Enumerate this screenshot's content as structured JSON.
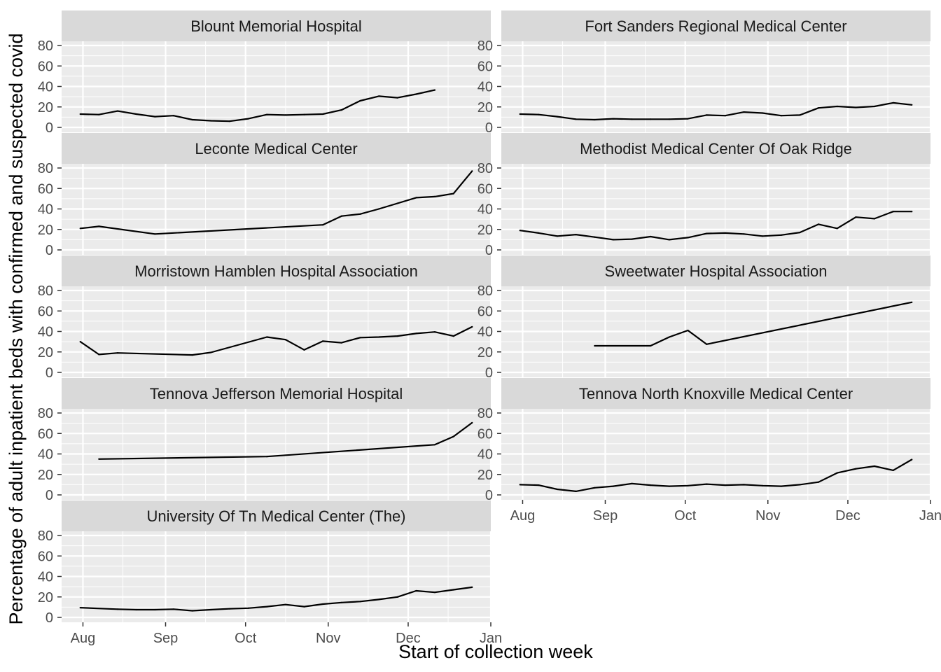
{
  "chart_data": {
    "type": "line",
    "layout": "facet-grid",
    "xlabel": "Start of collection week",
    "ylabel": "Percentage of adult inpatient beds with confirmed and suspected covid",
    "x_ticks": [
      "Aug",
      "Sep",
      "Oct",
      "Nov",
      "Dec",
      "Jan"
    ],
    "x_tick_dates": [
      "2020-08-01",
      "2020-09-01",
      "2020-10-01",
      "2020-11-01",
      "2020-12-01",
      "2021-01-01"
    ],
    "y_ticks": [
      0,
      20,
      40,
      60,
      80
    ],
    "xlim": [
      "2020-07-24",
      "2021-01-01"
    ],
    "ylim": [
      0,
      80
    ],
    "grid": true,
    "colors": {
      "panel": "#ebebeb",
      "strip": "#d9d9d9",
      "grid": "#ffffff",
      "line": "#000000"
    },
    "facets": [
      {
        "name": "Blount Memorial Hospital",
        "points": [
          [
            "2020-07-31",
            13
          ],
          [
            "2020-08-07",
            12.5
          ],
          [
            "2020-08-14",
            16
          ],
          [
            "2020-08-21",
            13
          ],
          [
            "2020-08-28",
            10.5
          ],
          [
            "2020-09-04",
            11.5
          ],
          [
            "2020-09-11",
            7.5
          ],
          [
            "2020-09-18",
            6.5
          ],
          [
            "2020-09-25",
            6
          ],
          [
            "2020-10-02",
            8.5
          ],
          [
            "2020-10-09",
            12.5
          ],
          [
            "2020-10-16",
            12
          ],
          [
            "2020-10-23",
            12.5
          ],
          [
            "2020-10-30",
            13
          ],
          [
            "2020-11-06",
            17
          ],
          [
            "2020-11-13",
            26
          ],
          [
            "2020-11-20",
            30.5
          ],
          [
            "2020-11-27",
            29
          ],
          [
            "2020-12-04",
            32.5
          ],
          [
            "2020-12-11",
            36.5
          ]
        ]
      },
      {
        "name": "Fort Sanders Regional Medical Center",
        "points": [
          [
            "2020-07-31",
            13
          ],
          [
            "2020-08-07",
            12.5
          ],
          [
            "2020-08-14",
            10.5
          ],
          [
            "2020-08-21",
            8
          ],
          [
            "2020-08-28",
            7.5
          ],
          [
            "2020-09-04",
            8.5
          ],
          [
            "2020-09-11",
            8
          ],
          [
            "2020-09-18",
            8
          ],
          [
            "2020-09-25",
            8
          ],
          [
            "2020-10-02",
            8.5
          ],
          [
            "2020-10-09",
            12
          ],
          [
            "2020-10-16",
            11.5
          ],
          [
            "2020-10-23",
            15
          ],
          [
            "2020-10-30",
            14
          ],
          [
            "2020-11-06",
            11.5
          ],
          [
            "2020-11-13",
            12
          ],
          [
            "2020-11-20",
            19
          ],
          [
            "2020-11-27",
            20.5
          ],
          [
            "2020-12-04",
            19.5
          ],
          [
            "2020-12-11",
            20.5
          ],
          [
            "2020-12-18",
            24
          ],
          [
            "2020-12-25",
            22
          ]
        ]
      },
      {
        "name": "Leconte Medical Center",
        "points": [
          [
            "2020-07-31",
            21
          ],
          [
            "2020-08-07",
            23
          ],
          [
            "2020-08-28",
            15.5
          ],
          [
            "2020-10-30",
            24.5
          ],
          [
            "2020-11-06",
            33
          ],
          [
            "2020-11-13",
            35
          ],
          [
            "2020-11-20",
            40
          ],
          [
            "2020-11-27",
            45.5
          ],
          [
            "2020-12-04",
            51
          ],
          [
            "2020-12-11",
            52
          ],
          [
            "2020-12-18",
            55
          ],
          [
            "2020-12-25",
            77
          ]
        ]
      },
      {
        "name": "Methodist Medical Center Of Oak Ridge",
        "points": [
          [
            "2020-07-31",
            19
          ],
          [
            "2020-08-07",
            16.5
          ],
          [
            "2020-08-14",
            13.5
          ],
          [
            "2020-08-21",
            15
          ],
          [
            "2020-08-28",
            12.5
          ],
          [
            "2020-09-04",
            10
          ],
          [
            "2020-09-11",
            10.5
          ],
          [
            "2020-09-18",
            13
          ],
          [
            "2020-09-25",
            10
          ],
          [
            "2020-10-02",
            12
          ],
          [
            "2020-10-09",
            16
          ],
          [
            "2020-10-16",
            16.5
          ],
          [
            "2020-10-23",
            15.5
          ],
          [
            "2020-10-30",
            13.5
          ],
          [
            "2020-11-06",
            14.5
          ],
          [
            "2020-11-13",
            17
          ],
          [
            "2020-11-20",
            25
          ],
          [
            "2020-11-27",
            21
          ],
          [
            "2020-12-04",
            32
          ],
          [
            "2020-12-11",
            30.5
          ],
          [
            "2020-12-18",
            37.5
          ],
          [
            "2020-12-25",
            37.5
          ]
        ]
      },
      {
        "name": "Morristown Hamblen Hospital Association",
        "points": [
          [
            "2020-07-31",
            30
          ],
          [
            "2020-08-07",
            17.5
          ],
          [
            "2020-08-14",
            19
          ],
          [
            "2020-09-11",
            17
          ],
          [
            "2020-09-18",
            19.5
          ],
          [
            "2020-10-09",
            34.5
          ],
          [
            "2020-10-16",
            32
          ],
          [
            "2020-10-23",
            22
          ],
          [
            "2020-10-30",
            30.5
          ],
          [
            "2020-11-06",
            29
          ],
          [
            "2020-11-13",
            34
          ],
          [
            "2020-11-20",
            34.5
          ],
          [
            "2020-11-27",
            35.5
          ],
          [
            "2020-12-04",
            38
          ],
          [
            "2020-12-11",
            39.5
          ],
          [
            "2020-12-18",
            35.5
          ],
          [
            "2020-12-25",
            44.5
          ]
        ]
      },
      {
        "name": "Sweetwater Hospital Association",
        "points": [
          [
            "2020-08-28",
            26
          ],
          [
            "2020-09-18",
            26
          ],
          [
            "2020-09-25",
            34.5
          ],
          [
            "2020-10-02",
            41
          ],
          [
            "2020-10-09",
            27.5
          ],
          [
            "2020-12-25",
            68.5
          ]
        ]
      },
      {
        "name": "Tennova Jefferson Memorial Hospital",
        "points": [
          [
            "2020-08-07",
            35
          ],
          [
            "2020-10-09",
            37.5
          ],
          [
            "2020-12-11",
            49
          ],
          [
            "2020-12-18",
            57
          ],
          [
            "2020-12-25",
            70.5
          ]
        ]
      },
      {
        "name": "Tennova North Knoxville Medical Center",
        "points": [
          [
            "2020-07-31",
            10
          ],
          [
            "2020-08-07",
            9.5
          ],
          [
            "2020-08-14",
            5.5
          ],
          [
            "2020-08-21",
            3.5
          ],
          [
            "2020-08-28",
            7
          ],
          [
            "2020-09-04",
            8.5
          ],
          [
            "2020-09-11",
            11
          ],
          [
            "2020-09-18",
            9.5
          ],
          [
            "2020-09-25",
            8.5
          ],
          [
            "2020-10-02",
            9
          ],
          [
            "2020-10-09",
            10.5
          ],
          [
            "2020-10-16",
            9.5
          ],
          [
            "2020-10-23",
            10
          ],
          [
            "2020-10-30",
            9
          ],
          [
            "2020-11-06",
            8.5
          ],
          [
            "2020-11-13",
            10
          ],
          [
            "2020-11-20",
            12.5
          ],
          [
            "2020-11-27",
            21.5
          ],
          [
            "2020-12-04",
            25.5
          ],
          [
            "2020-12-11",
            28
          ],
          [
            "2020-12-18",
            24
          ],
          [
            "2020-12-25",
            34.5
          ]
        ]
      },
      {
        "name": "University Of Tn Medical Center (The)",
        "points": [
          [
            "2020-07-31",
            9.5
          ],
          [
            "2020-08-14",
            8
          ],
          [
            "2020-08-21",
            7.5
          ],
          [
            "2020-08-28",
            7.5
          ],
          [
            "2020-09-04",
            8
          ],
          [
            "2020-09-11",
            6.5
          ],
          [
            "2020-09-18",
            7.5
          ],
          [
            "2020-09-25",
            8.5
          ],
          [
            "2020-10-02",
            9
          ],
          [
            "2020-10-09",
            10.5
          ],
          [
            "2020-10-16",
            12.5
          ],
          [
            "2020-10-23",
            10.5
          ],
          [
            "2020-10-30",
            13
          ],
          [
            "2020-11-06",
            14.5
          ],
          [
            "2020-11-13",
            15.5
          ],
          [
            "2020-11-20",
            17.5
          ],
          [
            "2020-11-27",
            20
          ],
          [
            "2020-12-04",
            26
          ],
          [
            "2020-12-11",
            24.5
          ],
          [
            "2020-12-18",
            27
          ],
          [
            "2020-12-25",
            29.5
          ]
        ]
      }
    ]
  }
}
